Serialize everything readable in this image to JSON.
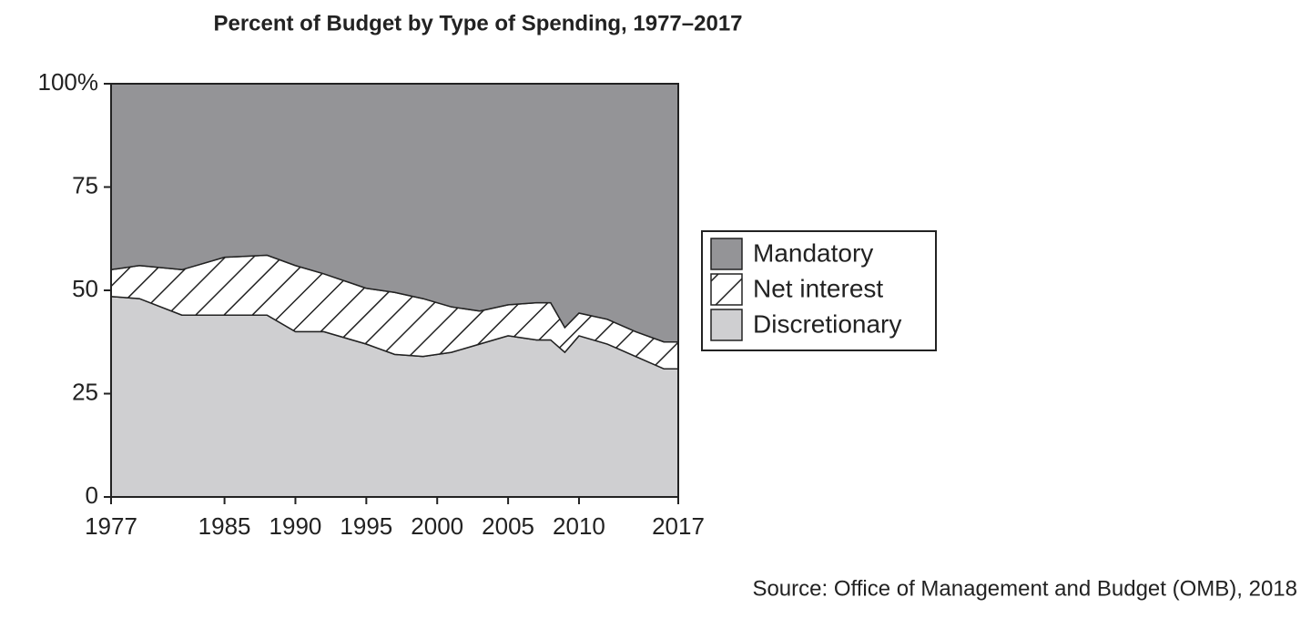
{
  "chart_data": {
    "type": "stacked_area",
    "title": "Percent of Budget by Type of Spending, 1977–2017",
    "source": "Source: Office of Management and Budget (OMB), 2018",
    "x": [
      1977,
      1979,
      1982,
      1985,
      1988,
      1990,
      1992,
      1995,
      1997,
      1999,
      2001,
      2003,
      2005,
      2007,
      2008,
      2009,
      2010,
      2012,
      2014,
      2016,
      2017
    ],
    "series": [
      {
        "name": "Discretionary",
        "color": "#cfcfd1",
        "values": [
          48.5,
          48,
          44,
          44,
          44,
          40,
          40,
          37,
          34.5,
          34,
          35,
          37,
          39,
          38,
          38,
          35,
          39,
          37,
          34,
          31,
          31
        ]
      },
      {
        "name": "Net interest",
        "color": "#ffffff",
        "hatch": true,
        "values": [
          6.5,
          8,
          11,
          14,
          14.5,
          16,
          14,
          13.5,
          15,
          14,
          11,
          8,
          7.5,
          9,
          9,
          6,
          5.5,
          6,
          6,
          6.5,
          6.5
        ]
      },
      {
        "name": "Mandatory",
        "color": "#949497",
        "values": [
          45,
          44,
          45,
          42,
          41.5,
          44,
          46,
          49.5,
          50.5,
          52,
          54,
          55,
          53.5,
          53,
          53,
          59,
          55.5,
          57,
          60,
          62.5,
          62.5
        ]
      }
    ],
    "xlim": [
      1977,
      2017
    ],
    "xticks": [
      1977,
      1985,
      1990,
      1995,
      2000,
      2005,
      2010,
      2017
    ],
    "ylim": [
      0,
      100
    ],
    "yticks": [
      0,
      25,
      50,
      75,
      {
        "value": 100,
        "label": "100%"
      }
    ],
    "legend": "right"
  }
}
